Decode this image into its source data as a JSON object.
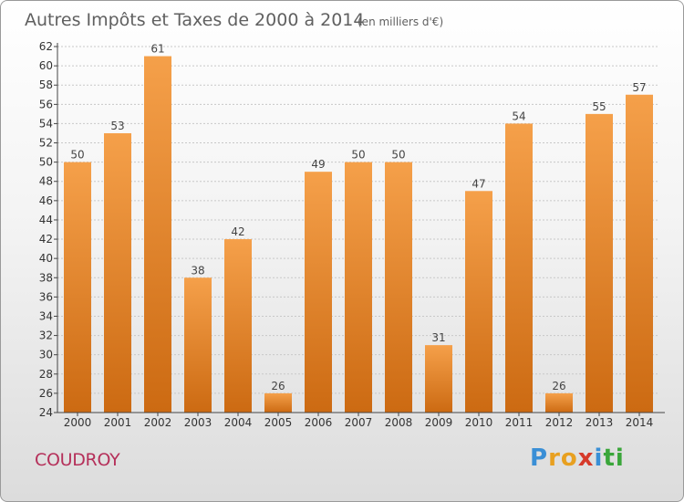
{
  "header": {
    "title": "Autres Impôts et Taxes de 2000 à 2014",
    "unit": "(en milliers d'€)"
  },
  "footer": {
    "commune": "COUDROY",
    "brand_letters": [
      "P",
      "r",
      "o",
      "x",
      "i",
      "t",
      "i"
    ],
    "brand_colors": [
      "#3a8fd6",
      "#e8a020",
      "#e8a020",
      "#d63a2a",
      "#3a8fd6",
      "#3aa63a",
      "#3aa63a"
    ]
  },
  "colors": {
    "bar_light": "#f5a04a",
    "bar_dark": "#cc6a12",
    "grid": "#c8c8c8",
    "axis": "#444444"
  },
  "chart_data": {
    "type": "bar",
    "title": "Autres Impôts et Taxes de 2000 à 2014",
    "subtitle": "(en milliers d'€)",
    "xlabel": "",
    "ylabel": "",
    "categories": [
      "2000",
      "2001",
      "2002",
      "2003",
      "2004",
      "2005",
      "2006",
      "2007",
      "2008",
      "2009",
      "2010",
      "2011",
      "2012",
      "2013",
      "2014"
    ],
    "values": [
      50,
      53,
      61,
      38,
      42,
      26,
      49,
      50,
      50,
      31,
      47,
      54,
      26,
      55,
      57
    ],
    "ylim": [
      24,
      62
    ],
    "yticks": [
      24,
      26,
      28,
      30,
      32,
      34,
      36,
      38,
      40,
      42,
      44,
      46,
      48,
      50,
      52,
      54,
      56,
      58,
      60,
      62
    ],
    "grid": true,
    "legend": "none"
  }
}
